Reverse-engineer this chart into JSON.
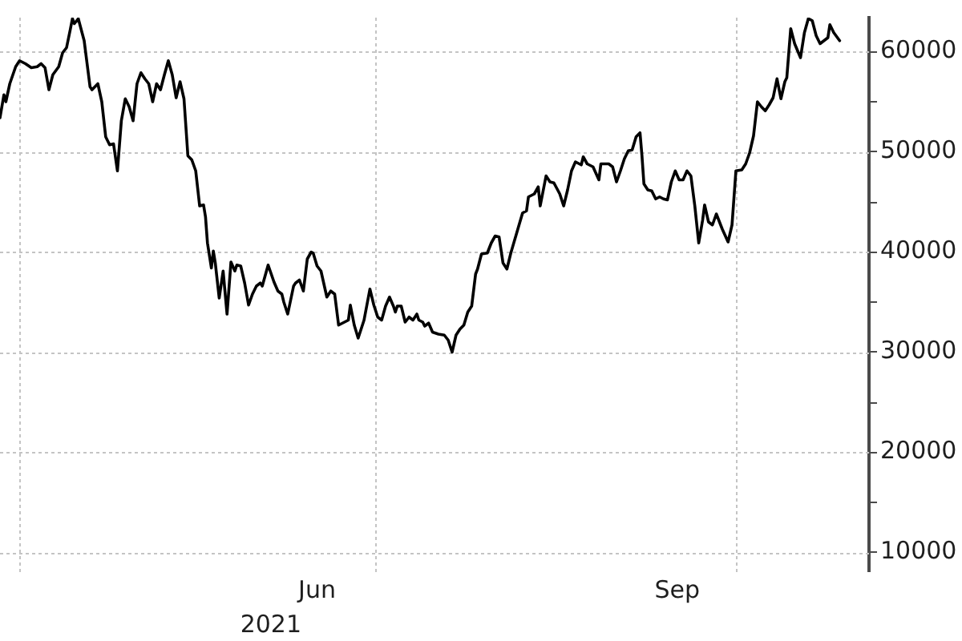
{
  "chart_data": {
    "type": "line",
    "color": "#000000",
    "x": [
      "2021-03-27",
      "2021-03-28",
      "2021-03-28T12:00",
      "2021-03-29T12:00",
      "2021-03-31",
      "2021-04-01",
      "2021-04-02T12:00",
      "2021-04-04",
      "2021-04-05T12:00",
      "2021-04-06T12:00",
      "2021-04-07T12:00",
      "2021-04-08T12:00",
      "2021-04-09T12:00",
      "2021-04-11",
      "2021-04-12",
      "2021-04-13",
      "2021-04-14",
      "2021-04-14T12:00",
      "2021-04-15",
      "2021-04-16",
      "2021-04-17T12:00",
      "2021-04-19",
      "2021-04-19T12:00",
      "2021-04-21",
      "2021-04-22",
      "2021-04-23",
      "2021-04-24",
      "2021-04-25",
      "2021-04-26",
      "2021-04-27",
      "2021-04-28",
      "2021-04-29",
      "2021-04-30",
      "2021-05-01",
      "2021-05-02",
      "2021-05-03",
      "2021-05-04",
      "2021-05-05",
      "2021-05-06",
      "2021-05-07",
      "2021-05-08",
      "2021-05-09",
      "2021-05-10",
      "2021-05-11",
      "2021-05-12",
      "2021-05-13",
      "2021-05-14",
      "2021-05-15",
      "2021-05-16",
      "2021-05-17",
      "2021-05-18",
      "2021-05-18T12:00",
      "2021-05-19",
      "2021-05-20",
      "2021-05-20T12:00",
      "2021-05-21",
      "2021-05-22",
      "2021-05-23",
      "2021-05-24",
      "2021-05-25",
      "2021-05-26",
      "2021-05-26T12:00",
      "2021-05-27T12:00",
      "2021-05-28T12:00",
      "2021-05-29T12:00",
      "2021-05-30T12:00",
      "2021-05-31T12:00",
      "2021-06-01T12:00",
      "2021-06-02",
      "2021-06-03T12:00",
      "2021-06-05",
      "2021-06-06",
      "2021-06-07",
      "2021-06-07T12:00",
      "2021-06-08T12:00",
      "2021-06-10",
      "2021-06-10T12:00",
      "2021-06-11T12:00",
      "2021-06-12T12:00",
      "2021-06-13T12:00",
      "2021-06-14T12:00",
      "2021-06-15",
      "2021-06-16",
      "2021-06-17",
      "2021-06-18T12:00",
      "2021-06-19T12:00",
      "2021-06-20T12:00",
      "2021-06-21T12:00",
      "2021-06-23",
      "2021-06-24",
      "2021-06-24T12:00",
      "2021-06-25T12:00",
      "2021-06-26T12:00",
      "2021-06-28",
      "2021-06-29T12:00",
      "2021-06-30T12:00",
      "2021-07-01T12:00",
      "2021-07-02T12:00",
      "2021-07-03T12:00",
      "2021-07-04T12:00",
      "2021-07-05T12:00",
      "2021-07-06",
      "2021-07-06T12:00",
      "2021-07-07T12:00",
      "2021-07-08T12:00",
      "2021-07-09T12:00",
      "2021-07-10T12:00",
      "2021-07-11T12:00",
      "2021-07-12",
      "2021-07-13",
      "2021-07-13T12:00",
      "2021-07-14T12:00",
      "2021-07-15T12:00",
      "2021-07-17",
      "2021-07-18T12:00",
      "2021-07-19T12:00",
      "2021-07-20T12:00",
      "2021-07-21T12:00",
      "2021-07-22T12:00",
      "2021-07-23T12:00",
      "2021-07-24T12:00",
      "2021-07-25T12:00",
      "2021-07-26T12:00",
      "2021-07-27",
      "2021-07-28",
      "2021-07-29T12:00",
      "2021-07-30T12:00",
      "2021-07-31T12:00",
      "2021-08-01T12:00",
      "2021-08-02T12:00",
      "2021-08-03T12:00",
      "2021-08-04T12:00",
      "2021-08-06",
      "2021-08-07T12:00",
      "2021-08-08T12:00",
      "2021-08-09",
      "2021-08-10T12:00",
      "2021-08-11T12:00",
      "2021-08-12",
      "2021-08-13T12:00",
      "2021-08-14T12:00",
      "2021-08-15T12:00",
      "2021-08-17",
      "2021-08-18",
      "2021-08-19",
      "2021-08-20",
      "2021-08-21",
      "2021-08-22T12:00",
      "2021-08-23",
      "2021-08-24",
      "2021-08-24T12:00",
      "2021-08-25T12:00",
      "2021-08-27",
      "2021-08-27T12:00",
      "2021-08-29T12:00",
      "2021-08-30T12:00",
      "2021-08-31T12:00",
      "2021-09-01T12:00",
      "2021-09-02T12:00",
      "2021-09-03T12:00",
      "2021-09-04T12:00",
      "2021-09-05T12:00",
      "2021-09-06T12:00",
      "2021-09-07",
      "2021-09-07T12:00",
      "2021-09-08T12:00",
      "2021-09-09T12:00",
      "2021-09-10T12:00",
      "2021-09-11T12:00",
      "2021-09-12T12:00",
      "2021-09-13T12:00",
      "2021-09-14T12:00",
      "2021-09-15T12:00",
      "2021-09-16T12:00",
      "2021-09-17T12:00",
      "2021-09-18T12:00",
      "2021-09-19T12:00",
      "2021-09-20T12:00",
      "2021-09-21T12:00",
      "2021-09-22T12:00",
      "2021-09-23",
      "2021-09-24",
      "2021-09-25",
      "2021-09-26",
      "2021-09-27T12:00",
      "2021-09-29",
      "2021-09-30",
      "2021-10-01",
      "2021-10-02T12:00",
      "2021-10-03T12:00",
      "2021-10-04T12:00",
      "2021-10-05T12:00",
      "2021-10-06T12:00",
      "2021-10-07T12:00",
      "2021-10-08T12:00",
      "2021-10-09T12:00",
      "2021-10-10T12:00",
      "2021-10-11T12:00",
      "2021-10-12T12:00",
      "2021-10-13T12:00",
      "2021-10-14",
      "2021-10-15",
      "2021-10-16",
      "2021-10-17T12:00",
      "2021-10-18T12:00",
      "2021-10-19T12:00",
      "2021-10-20T12:00",
      "2021-10-21T12:00",
      "2021-10-22T12:00",
      "2021-10-23T12:00",
      "2021-10-24T12:00",
      "2021-10-25",
      "2021-10-26",
      "2021-10-27T12:00"
    ],
    "values": [
      53400,
      55700,
      55000,
      56800,
      58500,
      59100,
      58800,
      58400,
      58500,
      58800,
      58400,
      56200,
      57700,
      58500,
      59900,
      60400,
      62300,
      63300,
      62800,
      63300,
      61100,
      56500,
      56200,
      56800,
      55000,
      51500,
      50700,
      50800,
      48100,
      53100,
      55300,
      54500,
      53100,
      56800,
      57900,
      57300,
      56800,
      55000,
      56800,
      56200,
      57700,
      59100,
      57700,
      55400,
      57000,
      55300,
      49600,
      49200,
      48100,
      44600,
      44700,
      43500,
      40900,
      38400,
      40100,
      38900,
      35400,
      38100,
      33800,
      39000,
      38100,
      38700,
      38600,
      36900,
      34700,
      35800,
      36600,
      36900,
      36600,
      38700,
      37000,
      36100,
      35800,
      35000,
      33800,
      36600,
      36900,
      37200,
      36100,
      39300,
      40000,
      39900,
      38600,
      38100,
      35500,
      36100,
      35800,
      32700,
      33000,
      33200,
      34700,
      32700,
      31400,
      33200,
      36300,
      34700,
      33500,
      33200,
      34600,
      35500,
      34600,
      34000,
      34600,
      34600,
      33000,
      33500,
      33200,
      33800,
      33200,
      33000,
      32600,
      32900,
      32000,
      31800,
      31700,
      31200,
      30000,
      31700,
      32300,
      32700,
      34000,
      34600,
      37800,
      38300,
      39800,
      39900,
      40900,
      41600,
      41500,
      38900,
      38300,
      39900,
      41900,
      43900,
      44100,
      45500,
      45800,
      46500,
      44600,
      47600,
      47000,
      46900,
      45800,
      44600,
      46200,
      48100,
      49000,
      48700,
      49500,
      48800,
      48700,
      48500,
      47200,
      48800,
      48800,
      48500,
      47000,
      48100,
      49300,
      50100,
      50200,
      51500,
      51900,
      49600,
      46800,
      46200,
      46100,
      45300,
      45500,
      45300,
      45200,
      47000,
      48100,
      47200,
      47200,
      48100,
      47600,
      44600,
      40900,
      43200,
      44700,
      43000,
      42700,
      43800,
      42300,
      41000,
      42700,
      48100,
      48200,
      48800,
      49900,
      51600,
      55000,
      54500,
      54100,
      54700,
      55400,
      57300,
      55300,
      57000,
      57400,
      62300,
      60800,
      59400,
      61900,
      63300,
      63100,
      61600,
      60800,
      61100,
      61400,
      62700,
      61900,
      61100
    ],
    "xlim": [
      "2021-03-27",
      "2021-11-04"
    ],
    "xticks": [
      {
        "value": "2021-04-01",
        "label": null
      },
      {
        "value": "2021-06-16",
        "label": "Jun"
      },
      {
        "value": "2021-07-01",
        "label": null
      },
      {
        "value": "2021-09-16",
        "label": "Sep"
      },
      {
        "value": "2021-10-01",
        "label": null
      }
    ],
    "ylim": [
      8200,
      63400
    ],
    "yticks": [
      10000,
      {
        "value": 15000,
        "label": null
      },
      20000,
      {
        "value": 25000,
        "label": null
      },
      30000,
      {
        "value": 35000,
        "label": null
      },
      40000,
      {
        "value": 45000,
        "label": null
      },
      50000,
      {
        "value": 55000,
        "label": null
      },
      60000
    ],
    "grid": true,
    "legend": false,
    "annotations": [
      "2021"
    ]
  }
}
